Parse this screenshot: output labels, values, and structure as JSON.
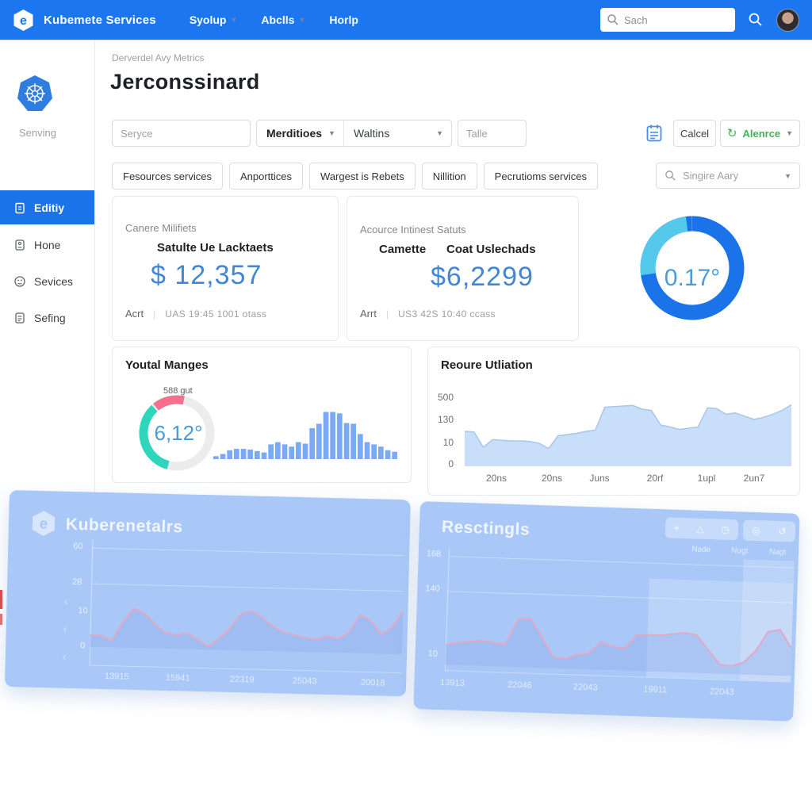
{
  "colors": {
    "nav_blue": "#1b76f0",
    "accent_blue": "#1a73e8",
    "value_blue": "#4286d6",
    "donut_main": "#1a73e8",
    "donut_cyan": "#55c9ec",
    "gauge_teal": "#2fd6bc",
    "gauge_pink": "#f4708e",
    "gauge_track": "#ececec",
    "bar_blue": "#7aaaf3",
    "area_fill": "#c9def8",
    "area_line": "#a9c6ea",
    "overlay_bg": "#a9c8f7",
    "overlay_line": "#e3a8c2",
    "alert_green": "#45b054"
  },
  "nav": {
    "brand": "Kubemete Services",
    "menu": [
      "Syolup",
      "Abclls",
      "Horlp"
    ],
    "search_placeholder": "Sach"
  },
  "sidebar": {
    "logo_caption": "Senving",
    "items": [
      "Editiy",
      "Hone",
      "Sevices",
      "Sefing"
    ]
  },
  "header": {
    "breadcrumb": "Derverdel Avy Metrics",
    "title": "Jerconssinard"
  },
  "filters": {
    "service_placeholder": "Seryce",
    "condition_label": "Merditioes",
    "condition_value": "Waltins",
    "title_placeholder": "Talle",
    "cancel_label": "Calcel",
    "alert_label": "Alenrce"
  },
  "chips": [
    "Fesources services",
    "Anporttices",
    "Wargest is Rebets",
    "Nillition",
    "Pecrutioms services"
  ],
  "chip_search_value": "Singire Aary",
  "stat_cards": [
    {
      "eyebrow": "Canere Milifiets",
      "label": "Satulte Ue Lacktaets",
      "value": "$ 12,357",
      "footer_tag": "Acrt",
      "footer_info": "UAS 19:45 1001 otass"
    },
    {
      "eyebrow": "Acource Intinest Satuts",
      "label_left": "Camette",
      "label_right": "Coat Uslechads",
      "value": "$6,2299",
      "footer_tag": "Arrt",
      "footer_info": "US3 42S 10:40 ccass"
    }
  ],
  "section_titles": {
    "manges": "Youtal Manges",
    "utliation": "Reoure Utliation"
  },
  "overlay_left": {
    "title": "Kuberenetalrs"
  },
  "overlay_right": {
    "title": "Resctingls",
    "legend": [
      "Nade",
      "Nugt",
      "Nagt"
    ]
  },
  "chart_data": {
    "completion_donut": {
      "type": "donut",
      "center_label": "0.17°",
      "main_sweep": [
        0,
        360
      ],
      "cyan_segment": [
        262,
        353
      ]
    },
    "manges_gauge": {
      "type": "gauge",
      "center_label": "6,12°",
      "top_label": "588 gut",
      "segments": [
        {
          "color_key": "gauge_teal",
          "start": 195,
          "end": 318
        },
        {
          "color_key": "gauge_pink",
          "start": 321,
          "end": 372
        }
      ]
    },
    "manges_bars": {
      "type": "bar",
      "values": [
        4,
        7,
        12,
        14,
        14,
        13,
        11,
        9,
        20,
        23,
        20,
        17,
        23,
        21,
        42,
        48,
        64,
        64,
        62,
        49,
        48,
        34,
        23,
        20,
        17,
        12,
        10
      ]
    },
    "utliation_area": {
      "type": "area",
      "y_ticks": [
        "500",
        "130",
        "10",
        "0"
      ],
      "x_ticks": [
        "20ns",
        "20ns",
        "Juns",
        "20rf",
        "1upl",
        "2un7"
      ],
      "values": [
        55,
        54,
        30,
        42,
        41,
        40,
        40,
        39,
        36,
        28,
        48,
        50,
        52,
        55,
        57,
        93,
        94,
        95,
        96,
        90,
        88,
        65,
        62,
        58,
        60,
        62,
        92,
        91,
        82,
        84,
        79,
        74,
        77,
        82,
        88,
        97
      ]
    },
    "overlay_left_line": {
      "type": "line",
      "y_ticks": [
        "60",
        "28",
        "10",
        "0"
      ],
      "x_ticks": [
        "13915",
        "15941",
        "22319",
        "25043",
        "20018"
      ],
      "values": [
        18,
        18,
        10,
        40,
        62,
        55,
        38,
        25,
        22,
        25,
        15,
        5,
        18,
        35,
        58,
        62,
        52,
        38,
        30,
        26,
        22,
        20,
        26,
        22,
        32,
        60,
        52,
        30,
        42,
        68
      ]
    },
    "overlay_right_line": {
      "type": "line",
      "y_ticks": [
        "168",
        "140",
        "10"
      ],
      "x_ticks": [
        "13913",
        "22046",
        "22043",
        "19911",
        "22043"
      ],
      "values": [
        25,
        28,
        30,
        32,
        30,
        28,
        60,
        62,
        40,
        15,
        12,
        18,
        20,
        35,
        30,
        28,
        45,
        46,
        46,
        48,
        50,
        48,
        30,
        12,
        10,
        15,
        30,
        55,
        58,
        35
      ]
    }
  }
}
